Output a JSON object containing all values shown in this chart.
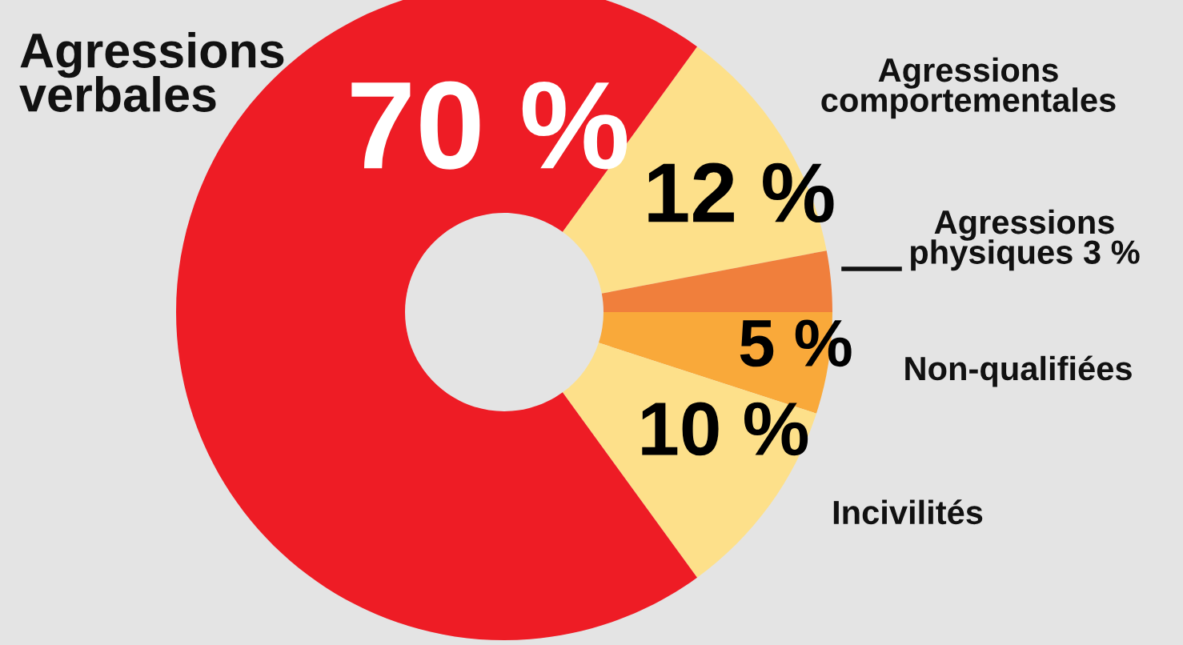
{
  "chart_data": {
    "type": "donut",
    "categories": [
      "Agressions verbales",
      "Agressions comportementales",
      "Agressions physiques",
      "Non-qualifiées",
      "Incivilités"
    ],
    "values": [
      70,
      12,
      3,
      5,
      10
    ],
    "colors": [
      "#ee1c25",
      "#fde08a",
      "#f07f3c",
      "#f9a93a",
      "#fde08a"
    ],
    "value_labels": [
      "70 %",
      "12 %",
      "3 %",
      "5 %",
      "10 %"
    ]
  }
}
